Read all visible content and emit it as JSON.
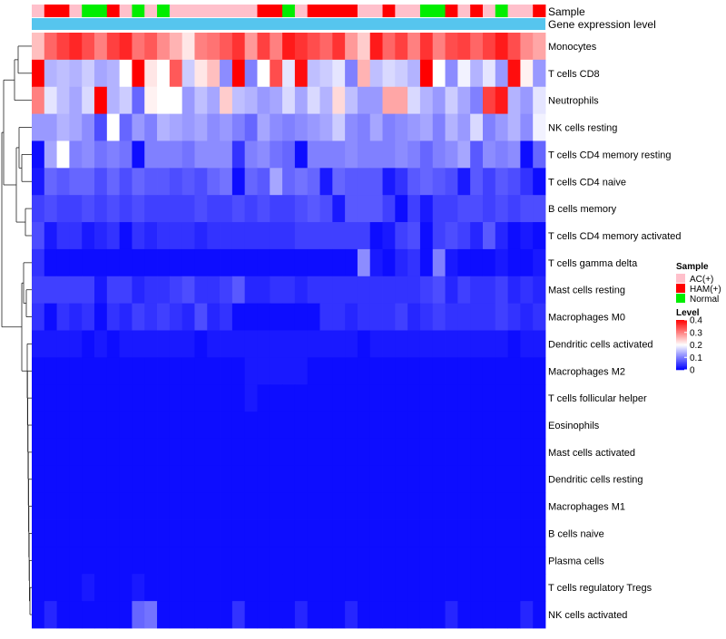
{
  "chart_data": {
    "type": "heatmap",
    "title": "",
    "annotation_rows": [
      "Sample",
      "Gene expression level"
    ],
    "sample_groups": [
      "AC(+)",
      "HAM(+)",
      "Normal"
    ],
    "sample_group_order": "0,1,1,0,2,2,1,0,2,0,2,0,0,0,0,0,0,0,1,1,2,0,1,1,1,1,0,0,1,0,0,2,2,1,0,1,0,2,0,0,1",
    "rows": [
      "Monocytes",
      "T cells CD8",
      "Neutrophils",
      "NK cells resting",
      "T cells CD4 memory resting",
      "T cells CD4 naive",
      "B cells memory",
      "T cells CD4 memory activated",
      "T cells gamma delta",
      "Mast cells resting",
      "Macrophages M0",
      "Dendritic cells activated",
      "Macrophages M2",
      "T cells follicular helper",
      "Eosinophils",
      "Mast cells activated",
      "Dendritic cells resting",
      "Macrophages M1",
      "B cells naive",
      "Plasma cells",
      "T cells regulatory  Tregs",
      "NK cells activated"
    ],
    "values": [
      [
        0.25,
        0.32,
        0.35,
        0.37,
        0.34,
        0.3,
        0.35,
        0.37,
        0.31,
        0.33,
        0.29,
        0.26,
        0.22,
        0.3,
        0.31,
        0.33,
        0.36,
        0.28,
        0.35,
        0.3,
        0.38,
        0.36,
        0.34,
        0.32,
        0.36,
        0.28,
        0.24,
        0.38,
        0.32,
        0.35,
        0.3,
        0.36,
        0.3,
        0.34,
        0.35,
        0.32,
        0.35,
        0.38,
        0.34,
        0.29,
        0.27
      ],
      [
        0.4,
        0.14,
        0.15,
        0.14,
        0.16,
        0.13,
        0.14,
        0.2,
        0.4,
        0.22,
        0.2,
        0.33,
        0.16,
        0.22,
        0.25,
        0.11,
        0.4,
        0.1,
        0.2,
        0.34,
        0.18,
        0.39,
        0.15,
        0.16,
        0.18,
        0.1,
        0.26,
        0.15,
        0.17,
        0.16,
        0.14,
        0.4,
        0.2,
        0.11,
        0.19,
        0.14,
        0.18,
        0.12,
        0.39,
        0.21,
        0.12
      ],
      [
        0.3,
        0.18,
        0.15,
        0.13,
        0.17,
        0.4,
        0.14,
        0.16,
        0.08,
        0.21,
        0.2,
        0.2,
        0.12,
        0.15,
        0.13,
        0.24,
        0.15,
        0.14,
        0.12,
        0.13,
        0.17,
        0.13,
        0.17,
        0.14,
        0.23,
        0.15,
        0.12,
        0.12,
        0.27,
        0.27,
        0.17,
        0.14,
        0.12,
        0.16,
        0.13,
        0.1,
        0.35,
        0.38,
        0.14,
        0.12,
        0.18
      ],
      [
        0.12,
        0.12,
        0.14,
        0.13,
        0.11,
        0.06,
        0.2,
        0.08,
        0.12,
        0.1,
        0.14,
        0.13,
        0.12,
        0.13,
        0.11,
        0.12,
        0.1,
        0.08,
        0.13,
        0.11,
        0.1,
        0.11,
        0.12,
        0.13,
        0.16,
        0.11,
        0.1,
        0.13,
        0.1,
        0.11,
        0.12,
        0.13,
        0.1,
        0.14,
        0.12,
        0.17,
        0.1,
        0.12,
        0.14,
        0.11,
        0.19
      ],
      [
        0.01,
        0.13,
        0.2,
        0.1,
        0.11,
        0.09,
        0.1,
        0.09,
        0.01,
        0.1,
        0.1,
        0.1,
        0.09,
        0.11,
        0.11,
        0.11,
        0.04,
        0.1,
        0.11,
        0.09,
        0.08,
        0.01,
        0.1,
        0.1,
        0.1,
        0.11,
        0.1,
        0.1,
        0.1,
        0.11,
        0.1,
        0.08,
        0.1,
        0.11,
        0.13,
        0.07,
        0.11,
        0.1,
        0.11,
        0.01,
        0.08
      ],
      [
        0.02,
        0.08,
        0.07,
        0.08,
        0.08,
        0.06,
        0.08,
        0.06,
        0.08,
        0.07,
        0.07,
        0.06,
        0.07,
        0.06,
        0.08,
        0.09,
        0.01,
        0.08,
        0.07,
        0.13,
        0.08,
        0.09,
        0.08,
        0.02,
        0.08,
        0.07,
        0.07,
        0.07,
        0.02,
        0.04,
        0.07,
        0.08,
        0.07,
        0.06,
        0.02,
        0.07,
        0.05,
        0.07,
        0.06,
        0.04,
        0.01
      ],
      [
        0.05,
        0.06,
        0.05,
        0.05,
        0.06,
        0.05,
        0.06,
        0.05,
        0.06,
        0.05,
        0.05,
        0.05,
        0.05,
        0.06,
        0.05,
        0.05,
        0.06,
        0.05,
        0.06,
        0.05,
        0.05,
        0.06,
        0.07,
        0.06,
        0.02,
        0.07,
        0.07,
        0.07,
        0.05,
        0.01,
        0.05,
        0.02,
        0.05,
        0.05,
        0.06,
        0.06,
        0.05,
        0.06,
        0.05,
        0.06,
        0.06
      ],
      [
        0.06,
        0.02,
        0.04,
        0.04,
        0.02,
        0.03,
        0.04,
        0.01,
        0.04,
        0.03,
        0.04,
        0.04,
        0.04,
        0.03,
        0.04,
        0.04,
        0.04,
        0.04,
        0.04,
        0.04,
        0.04,
        0.05,
        0.05,
        0.05,
        0.05,
        0.05,
        0.05,
        0.01,
        0.02,
        0.05,
        0.06,
        0.01,
        0.05,
        0.06,
        0.05,
        0.03,
        0.07,
        0.03,
        0.01,
        0.02,
        0.01
      ],
      [
        0.04,
        0.01,
        0.01,
        0.01,
        0.01,
        0.01,
        0.01,
        0.01,
        0.01,
        0.01,
        0.01,
        0.01,
        0.01,
        0.01,
        0.01,
        0.01,
        0.01,
        0.01,
        0.01,
        0.01,
        0.01,
        0.01,
        0.01,
        0.01,
        0.01,
        0.01,
        0.11,
        0.02,
        0.01,
        0.03,
        0.04,
        0.01,
        0.1,
        0.02,
        0.01,
        0.01,
        0.01,
        0.02,
        0.01,
        0.01,
        0.02
      ],
      [
        0.05,
        0.05,
        0.05,
        0.05,
        0.05,
        0.02,
        0.05,
        0.05,
        0.03,
        0.04,
        0.04,
        0.05,
        0.06,
        0.04,
        0.04,
        0.05,
        0.07,
        0.03,
        0.03,
        0.04,
        0.04,
        0.03,
        0.04,
        0.04,
        0.04,
        0.04,
        0.04,
        0.04,
        0.04,
        0.04,
        0.04,
        0.05,
        0.06,
        0.03,
        0.05,
        0.04,
        0.04,
        0.05,
        0.03,
        0.04,
        0.03
      ],
      [
        0.04,
        0.01,
        0.04,
        0.03,
        0.04,
        0.01,
        0.04,
        0.03,
        0.05,
        0.04,
        0.05,
        0.04,
        0.03,
        0.06,
        0.03,
        0.04,
        0.01,
        0.01,
        0.01,
        0.01,
        0.01,
        0.01,
        0.01,
        0.04,
        0.04,
        0.03,
        0.04,
        0.04,
        0.04,
        0.05,
        0.03,
        0.04,
        0.05,
        0.04,
        0.04,
        0.04,
        0.04,
        0.05,
        0.04,
        0.03,
        0.04
      ],
      [
        0.02,
        0.02,
        0.02,
        0.02,
        0.01,
        0.02,
        0.01,
        0.02,
        0.02,
        0.02,
        0.02,
        0.02,
        0.02,
        0.01,
        0.02,
        0.02,
        0.02,
        0.02,
        0.02,
        0.02,
        0.02,
        0.02,
        0.02,
        0.02,
        0.02,
        0.02,
        0.01,
        0.02,
        0.02,
        0.02,
        0.02,
        0.02,
        0.02,
        0.02,
        0.02,
        0.02,
        0.02,
        0.02,
        0.01,
        0.02,
        0.02
      ],
      [
        0.01,
        0.01,
        0.01,
        0.01,
        0.01,
        0.01,
        0.01,
        0.01,
        0.01,
        0.01,
        0.01,
        0.01,
        0.01,
        0.01,
        0.01,
        0.01,
        0.01,
        0.02,
        0.02,
        0.02,
        0.02,
        0.02,
        0.01,
        0.01,
        0.01,
        0.01,
        0.01,
        0.01,
        0.01,
        0.01,
        0.01,
        0.01,
        0.01,
        0.01,
        0.01,
        0.01,
        0.01,
        0.01,
        0.01,
        0.01,
        0.01
      ],
      [
        0.01,
        0.01,
        0.01,
        0.01,
        0.01,
        0.01,
        0.01,
        0.01,
        0.01,
        0.01,
        0.01,
        0.01,
        0.01,
        0.01,
        0.01,
        0.01,
        0.01,
        0.02,
        0.01,
        0.01,
        0.01,
        0.01,
        0.01,
        0.01,
        0.01,
        0.01,
        0.01,
        0.01,
        0.01,
        0.01,
        0.01,
        0.01,
        0.01,
        0.01,
        0.01,
        0.01,
        0.01,
        0.01,
        0.01,
        0.01,
        0.01
      ],
      [
        0.01,
        0.01,
        0.01,
        0.01,
        0.01,
        0.01,
        0.01,
        0.01,
        0.01,
        0.01,
        0.01,
        0.01,
        0.01,
        0.01,
        0.01,
        0.01,
        0.01,
        0.01,
        0.01,
        0.01,
        0.01,
        0.01,
        0.01,
        0.01,
        0.01,
        0.01,
        0.01,
        0.01,
        0.01,
        0.01,
        0.01,
        0.01,
        0.01,
        0.01,
        0.01,
        0.01,
        0.01,
        0.01,
        0.01,
        0.01,
        0.01
      ],
      [
        0.01,
        0.01,
        0.01,
        0.01,
        0.01,
        0.01,
        0.01,
        0.01,
        0.01,
        0.01,
        0.01,
        0.01,
        0.01,
        0.01,
        0.01,
        0.01,
        0.01,
        0.01,
        0.01,
        0.01,
        0.01,
        0.01,
        0.01,
        0.01,
        0.01,
        0.01,
        0.01,
        0.01,
        0.01,
        0.01,
        0.01,
        0.01,
        0.01,
        0.01,
        0.01,
        0.01,
        0.01,
        0.01,
        0.01,
        0.01,
        0.01
      ],
      [
        0.01,
        0.01,
        0.01,
        0.01,
        0.01,
        0.01,
        0.01,
        0.01,
        0.01,
        0.01,
        0.01,
        0.01,
        0.01,
        0.01,
        0.01,
        0.01,
        0.01,
        0.01,
        0.01,
        0.01,
        0.01,
        0.01,
        0.01,
        0.01,
        0.01,
        0.01,
        0.01,
        0.01,
        0.01,
        0.01,
        0.01,
        0.01,
        0.01,
        0.01,
        0.01,
        0.01,
        0.01,
        0.01,
        0.01,
        0.01,
        0.01
      ],
      [
        0.01,
        0.01,
        0.01,
        0.01,
        0.01,
        0.01,
        0.01,
        0.01,
        0.01,
        0.01,
        0.01,
        0.01,
        0.01,
        0.01,
        0.01,
        0.01,
        0.01,
        0.01,
        0.01,
        0.01,
        0.01,
        0.01,
        0.01,
        0.01,
        0.01,
        0.01,
        0.01,
        0.01,
        0.01,
        0.01,
        0.01,
        0.01,
        0.01,
        0.01,
        0.01,
        0.01,
        0.01,
        0.01,
        0.01,
        0.01,
        0.01
      ],
      [
        0.01,
        0.01,
        0.01,
        0.01,
        0.01,
        0.01,
        0.01,
        0.01,
        0.01,
        0.01,
        0.01,
        0.01,
        0.01,
        0.01,
        0.01,
        0.01,
        0.01,
        0.01,
        0.01,
        0.01,
        0.01,
        0.01,
        0.01,
        0.01,
        0.01,
        0.01,
        0.01,
        0.01,
        0.01,
        0.01,
        0.01,
        0.01,
        0.01,
        0.01,
        0.01,
        0.01,
        0.01,
        0.01,
        0.01,
        0.01,
        0.01
      ],
      [
        0.01,
        0.01,
        0.01,
        0.01,
        0.01,
        0.01,
        0.01,
        0.01,
        0.01,
        0.01,
        0.01,
        0.01,
        0.01,
        0.01,
        0.01,
        0.01,
        0.01,
        0.01,
        0.01,
        0.01,
        0.01,
        0.01,
        0.01,
        0.01,
        0.01,
        0.01,
        0.01,
        0.01,
        0.01,
        0.01,
        0.01,
        0.01,
        0.01,
        0.01,
        0.01,
        0.01,
        0.01,
        0.01,
        0.01,
        0.01,
        0.01
      ],
      [
        0.01,
        0.01,
        0.01,
        0.01,
        0.02,
        0.01,
        0.01,
        0.01,
        0.02,
        0.01,
        0.01,
        0.01,
        0.01,
        0.01,
        0.01,
        0.01,
        0.01,
        0.01,
        0.01,
        0.01,
        0.01,
        0.01,
        0.01,
        0.01,
        0.01,
        0.01,
        0.01,
        0.01,
        0.01,
        0.01,
        0.01,
        0.01,
        0.01,
        0.01,
        0.01,
        0.01,
        0.01,
        0.01,
        0.01,
        0.01,
        0.01
      ],
      [
        0.01,
        0.03,
        0.01,
        0.01,
        0.01,
        0.01,
        0.01,
        0.01,
        0.08,
        0.09,
        0.01,
        0.01,
        0.01,
        0.01,
        0.01,
        0.01,
        0.04,
        0.01,
        0.01,
        0.01,
        0.01,
        0.03,
        0.01,
        0.01,
        0.01,
        0.03,
        0.01,
        0.01,
        0.01,
        0.01,
        0.01,
        0.01,
        0.01,
        0.03,
        0.01,
        0.01,
        0.01,
        0.01,
        0.01,
        0.03,
        0.01
      ]
    ],
    "legend": {
      "sample_title": "Sample",
      "sample_items": [
        "AC(+)",
        "HAM(+)",
        "Normal"
      ],
      "sample_colors": [
        "#ffc0cb",
        "#ff0000",
        "#00ee00"
      ],
      "level_title": "Level",
      "level_ticks": [
        "0.4",
        "0.3",
        "0.2",
        "0.1",
        "0"
      ],
      "level_tick_values": [
        0.4,
        0.3,
        0.2,
        0.1,
        0
      ],
      "level_range": [
        0,
        0.4
      ],
      "placement": "right"
    },
    "colors": {
      "low": "#0000ff",
      "mid": "#ffffff",
      "high": "#ff0000",
      "expression_bar": "#56c5ee"
    }
  }
}
